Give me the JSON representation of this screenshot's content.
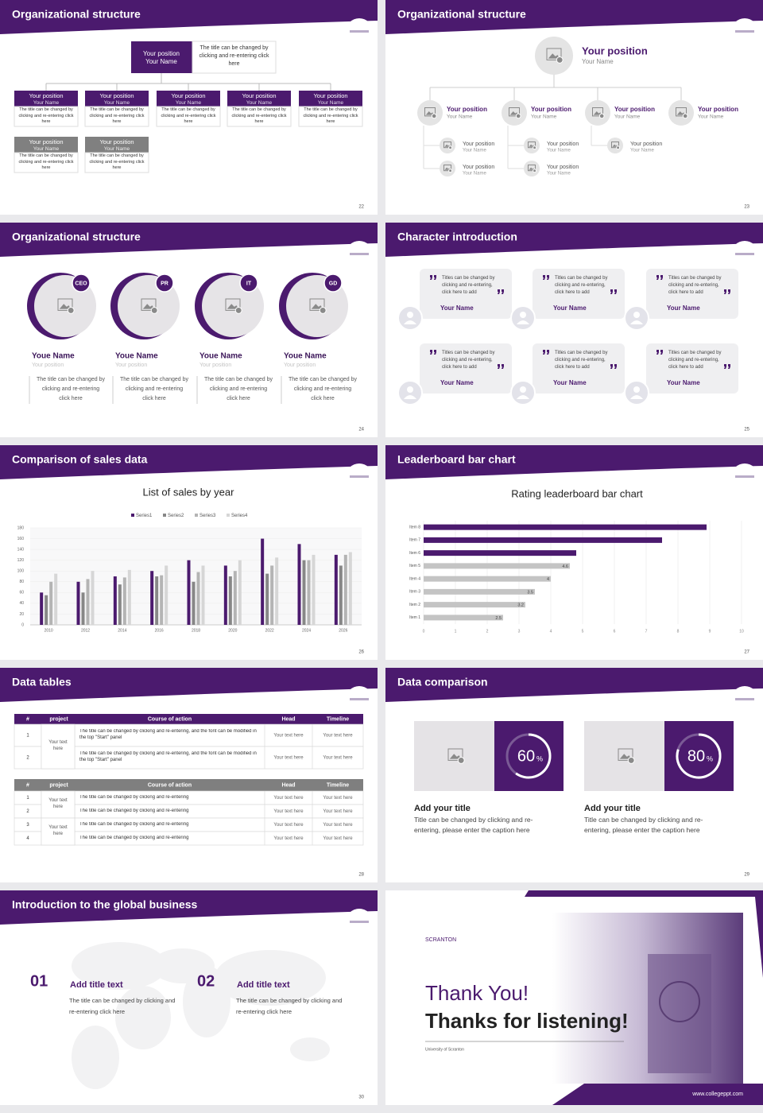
{
  "slides": [
    {
      "title": "Organizational structure",
      "page": "22",
      "top": {
        "position": "Your position",
        "name": "Your Name",
        "desc": "The title can be changed by clicking and re-entering click here"
      },
      "members": [
        {
          "position": "Your position",
          "name": "Your Name",
          "desc": "The title can be changed by clicking and re-entering click here"
        },
        {
          "position": "Your position",
          "name": "Your Name",
          "desc": "The title can be changed by clicking and re-entering click here"
        },
        {
          "position": "Your position",
          "name": "Your Name",
          "desc": "The title can be changed by clicking and re-entering click here"
        },
        {
          "position": "Your position",
          "name": "Your Name",
          "desc": "The title can be changed by clicking and re-entering click here"
        },
        {
          "position": "Your position",
          "name": "Your Name",
          "desc": "The title can be changed by clicking and re-entering click here"
        }
      ],
      "members2": [
        {
          "position": "Your position",
          "name": "Your Name",
          "desc": "The title can be changed by clicking and re-entering click here"
        },
        {
          "position": "Your position",
          "name": "Your Name",
          "desc": "The title can be changed by clicking and re-entering click here"
        }
      ]
    },
    {
      "title": "Organizational structure",
      "page": "23",
      "top": {
        "position": "Your position",
        "name": "Your Name"
      },
      "members": [
        {
          "position": "Your position",
          "name": "Your Name",
          "children": [
            {
              "position": "Your position",
              "name": "Your Name"
            },
            {
              "position": "Your position",
              "name": "Your Name"
            }
          ]
        },
        {
          "position": "Your position",
          "name": "Your Name",
          "children": [
            {
              "position": "Your position",
              "name": "Your Name"
            },
            {
              "position": "Your position",
              "name": "Your Name"
            }
          ]
        },
        {
          "position": "Your position",
          "name": "Your Name",
          "children": [
            {
              "position": "Your position",
              "name": "Your Name"
            }
          ]
        },
        {
          "position": "Your position",
          "name": "Your Name"
        }
      ]
    },
    {
      "title": "Organizational structure",
      "page": "24",
      "members": [
        {
          "badge": "CEO",
          "name": "Youe Name",
          "role": "Your position",
          "desc": "The title can be changed by clicking and re-entering click here"
        },
        {
          "badge": "PR",
          "name": "Youe Name",
          "role": "Your position",
          "desc": "The title can be changed by clicking and re-entering click here"
        },
        {
          "badge": "IT",
          "name": "Youe Name",
          "role": "Your position",
          "desc": "The title can be changed by clicking and re-entering click here"
        },
        {
          "badge": "GD",
          "name": "Youe Name",
          "role": "Your position",
          "desc": "The title can be changed by clicking and re-entering click here"
        }
      ]
    },
    {
      "title": "Character introduction",
      "page": "25",
      "cards": [
        {
          "quote": "Titles can be changed by clicking and re-entering, click here to add",
          "name": "Your Name"
        },
        {
          "quote": "Titles can be changed by clicking and re-entering, click here to add",
          "name": "Your Name"
        },
        {
          "quote": "Titles can be changed by clicking and re-entering, click here to add",
          "name": "Your Name"
        },
        {
          "quote": "Titles can be changed by clicking and re-entering, click here to add",
          "name": "Your Name"
        },
        {
          "quote": "Titles can be changed by clicking and re-entering, click here to add",
          "name": "Your Name"
        },
        {
          "quote": "Titles can be changed by clicking and re-entering, click here to add",
          "name": "Your Name"
        }
      ]
    },
    {
      "title": "Comparison of sales data",
      "page": "26"
    },
    {
      "title": "Leaderboard bar chart",
      "page": "27"
    },
    {
      "title": "Data tables",
      "page": "28",
      "table1": {
        "header": [
          "#",
          "project",
          "Course of action",
          "Head",
          "Timeline"
        ],
        "project": "Your text here",
        "rows": [
          [
            "1",
            "The title can be changed by clicking and re-entering, and the font can be modified in the top \"Start\" panel",
            "Your text here",
            "Your text here"
          ],
          [
            "2",
            "The title can be changed by clicking and re-entering, and the font can be modified in the top \"Start\" panel",
            "Your text here",
            "Your text here"
          ]
        ]
      },
      "table2": {
        "header": [
          "#",
          "project",
          "Course of action",
          "Head",
          "Timeline"
        ],
        "projects": [
          "Your text here",
          "Your text here"
        ],
        "rows": [
          [
            "1",
            "The title can be changed by clicking and re-entering",
            "Your text here",
            "Your text here"
          ],
          [
            "2",
            "The title can be changed by clicking and re-entering",
            "Your text here",
            "Your text here"
          ],
          [
            "3",
            "The title can be changed by clicking and re-entering",
            "Your text here",
            "Your text here"
          ],
          [
            "4",
            "The title can be changed by clicking and re-entering",
            "Your text here",
            "Your text here"
          ]
        ]
      }
    },
    {
      "title": "Data comparison",
      "page": "29",
      "items": [
        {
          "percent": 60,
          "unit": "%",
          "title": "Add your title",
          "desc": "Title can be changed by clicking and re-entering, please enter the caption here"
        },
        {
          "percent": 80,
          "unit": "%",
          "title": "Add your title",
          "desc": "Title can be changed by clicking and re-entering, please enter the caption here"
        }
      ]
    },
    {
      "title": "Introduction to the global business",
      "page": "30",
      "items": [
        {
          "num": "01",
          "title": "Add title text",
          "desc": "The title can be changed by clicking and re-entering click here"
        },
        {
          "num": "02",
          "title": "Add title text",
          "desc": "The title can be changed by clicking and re-entering click here"
        }
      ]
    },
    {
      "logo": "SCRANTON",
      "heading": "Thank You!",
      "subheading": "Thanks for listening!",
      "caption": "University of Scranton",
      "url": "www.collegeppt.com"
    }
  ],
  "chart_data": [
    {
      "type": "bar",
      "title": "List of sales by year",
      "categories": [
        "2010",
        "2012",
        "2014",
        "2016",
        "2018",
        "2020",
        "2022",
        "2024",
        "2026"
      ],
      "series": [
        {
          "name": "Series1",
          "color": "#4b1a6e",
          "values": [
            60,
            80,
            90,
            100,
            120,
            110,
            160,
            150,
            130
          ]
        },
        {
          "name": "Series2",
          "color": "#878787",
          "values": [
            55,
            60,
            75,
            90,
            80,
            90,
            95,
            120,
            110
          ]
        },
        {
          "name": "Series3",
          "color": "#b4b4b4",
          "values": [
            80,
            85,
            88,
            92,
            98,
            100,
            110,
            120,
            130
          ]
        },
        {
          "name": "Series4",
          "color": "#d6d6d6",
          "values": [
            95,
            100,
            102,
            110,
            110,
            120,
            125,
            130,
            135
          ]
        }
      ],
      "ylim": [
        0,
        180
      ],
      "yticks": [
        0,
        20,
        40,
        60,
        80,
        100,
        120,
        140,
        160,
        180
      ],
      "grid": true
    },
    {
      "type": "hbar",
      "title": "Rating leaderboard bar chart",
      "categories": [
        "Item 1",
        "Item 2",
        "Item 3",
        "Item 4",
        "Item 5",
        "Item 6",
        "Item 7",
        "Item 8"
      ],
      "values": [
        2.5,
        3.2,
        3.5,
        4,
        4.6,
        4.8,
        7.5,
        8.9
      ],
      "value_labels": [
        "2.5",
        "3.2",
        "3.5",
        "4",
        "4.6",
        null,
        null,
        null
      ],
      "colors": [
        "#c4c4c4",
        "#c4c4c4",
        "#c4c4c4",
        "#c4c4c4",
        "#c4c4c4",
        "#4b1a6e",
        "#4b1a6e",
        "#4b1a6e"
      ],
      "xlim": [
        0,
        10
      ],
      "xticks": [
        0,
        1,
        2,
        3,
        4,
        5,
        6,
        7,
        8,
        9,
        10
      ],
      "grid": true
    }
  ]
}
